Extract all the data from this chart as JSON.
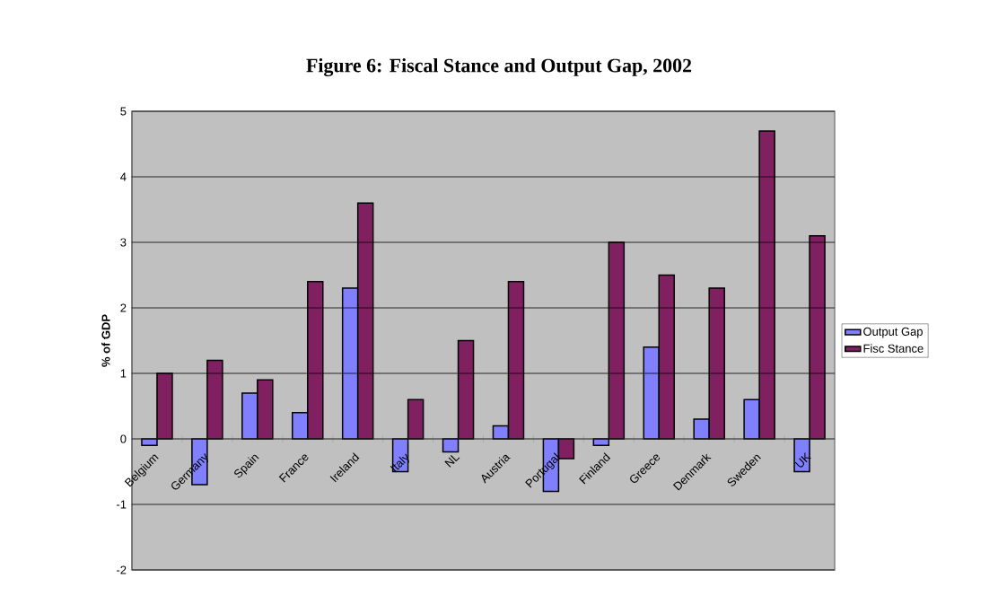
{
  "chart_data": {
    "type": "bar",
    "title": "Figure 6: Fiscal Stance and Output Gap, 2002",
    "ylabel": "% of GDP",
    "categories": [
      "Belgium",
      "Germany",
      "Spain",
      "France",
      "Ireland",
      "Italy",
      "NL",
      "Austria",
      "Portugal",
      "Finland",
      "Greece",
      "Denmark",
      "Sweden",
      "UK"
    ],
    "series": [
      {
        "name": "Output Gap",
        "color": "#8080ff",
        "values": [
          -0.1,
          -0.7,
          0.7,
          0.4,
          2.3,
          -0.5,
          -0.2,
          0.2,
          -0.8,
          -0.1,
          1.4,
          0.3,
          0.6,
          -0.5
        ]
      },
      {
        "name": "Fisc Stance",
        "color": "#802060",
        "values": [
          1.0,
          1.2,
          0.9,
          2.4,
          3.6,
          0.6,
          1.5,
          2.4,
          -0.3,
          3.0,
          2.5,
          2.3,
          4.7,
          3.1
        ]
      }
    ],
    "ylim": [
      -2,
      5
    ],
    "yticks": [
      -2,
      -1,
      0,
      1,
      2,
      3,
      4,
      5
    ],
    "grid": "y",
    "legend": "right"
  }
}
